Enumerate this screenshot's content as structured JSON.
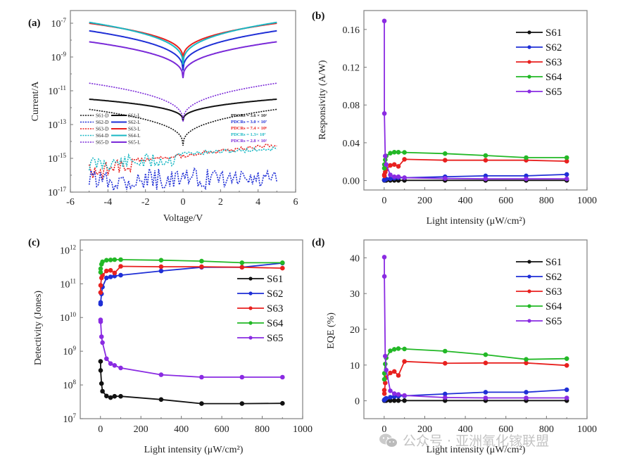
{
  "figure": {
    "watermark_text": "公众号 · 亚洲氧化镓联盟",
    "watermark_icon": "wechat-icon"
  },
  "colors": {
    "S61": "#111111",
    "S62": "#1f2fd6",
    "S63": "#e8211f",
    "S64": "#22b826",
    "S65": "#8a2be2",
    "S64_iv": "#19b8c4",
    "S65_iv": "#7a2ad8",
    "axis": "#888888"
  },
  "chart_data": [
    {
      "id": "a",
      "panel_label": "(a)",
      "type": "line",
      "title": "",
      "xlabel": "Voltage/V",
      "ylabel": "Current/A",
      "xlim": [
        -6,
        6
      ],
      "ylim_log10": [
        -17,
        -6.25
      ],
      "yscale": "log",
      "xticks": [
        -6,
        -4,
        -2,
        0,
        2,
        4,
        6
      ],
      "xtick_labels": [
        "-6",
        "-4",
        "-2",
        "0",
        "2",
        "4",
        "6"
      ],
      "yticks_exp": [
        -7,
        -9,
        -11,
        -13,
        -15,
        -17
      ],
      "ytick_labels": [
        "-7",
        "-9",
        "-11",
        "-13",
        "-15",
        "-17"
      ],
      "legend": {
        "placement": "lower-left",
        "entries": [
          {
            "dark": "S61-D",
            "light": "S61-L"
          },
          {
            "dark": "S62-D",
            "light": "S62-L"
          },
          {
            "dark": "S63-D",
            "light": "S63-L"
          },
          {
            "dark": "S64-D",
            "light": "S64-L"
          },
          {
            "dark": "S65-D",
            "light": "S65-L"
          }
        ]
      },
      "annotations": [
        {
          "text": "PDCRs = 3.6 × 10²",
          "series": "S61"
        },
        {
          "text": "PDCRs = 3.0 × 10⁷",
          "series": "S62"
        },
        {
          "text": "PDCRs = 7.4 × 10⁶",
          "series": "S63"
        },
        {
          "text": "PDCRs = 1.3× 10⁷",
          "series": "S64"
        },
        {
          "text": "PDCRs = 2.8 × 10²",
          "series": "S65"
        }
      ],
      "series": [
        {
          "name": "S61-L",
          "style": "solid",
          "color_key": "S61",
          "end_log": -11.5,
          "min_log": -12.8
        },
        {
          "name": "S62-L",
          "style": "solid",
          "color_key": "S62",
          "end_log": -7.45,
          "min_log": -9.85
        },
        {
          "name": "S63-L",
          "style": "solid",
          "color_key": "S63",
          "end_log": -7.0,
          "min_log": -9.2
        },
        {
          "name": "S64-L",
          "style": "solid",
          "color_key": "S64_iv",
          "end_log": -6.95,
          "min_log": -9.5
        },
        {
          "name": "S65-L",
          "style": "solid",
          "color_key": "S65_iv",
          "end_log": -8.1,
          "min_log": -10.3
        },
        {
          "name": "S61-D",
          "style": "dotted",
          "color_key": "S61",
          "end_log": -12.1,
          "min_log": -14.3
        },
        {
          "name": "S65-D",
          "style": "dotted",
          "color_key": "S65_iv",
          "end_log": -10.55,
          "min_log": -12.9
        },
        {
          "name": "S63-D",
          "style": "dotted-noisy",
          "color_key": "S63",
          "left_log": -15.3,
          "right_log": -14.1
        },
        {
          "name": "S64-D",
          "style": "dotted-noisy",
          "color_key": "S64_iv",
          "left_log": -14.9,
          "right_log": -14.3
        },
        {
          "name": "S62-D",
          "style": "dotted-noisy",
          "color_key": "S62",
          "left_log": -15.6,
          "right_log": -15.6
        }
      ]
    },
    {
      "id": "b",
      "panel_label": "(b)",
      "type": "line",
      "title": "",
      "xlabel": "Light intensity (μW/cm²)",
      "ylabel": "Responsivity (A/W)",
      "xlim": [
        -100,
        1000
      ],
      "ylim": [
        -0.01,
        0.18
      ],
      "xticks": [
        0,
        200,
        400,
        600,
        800,
        1000
      ],
      "xtick_labels": [
        "0",
        "200",
        "400",
        "600",
        "800",
        "1000"
      ],
      "yticks": [
        0.0,
        0.04,
        0.08,
        0.12,
        0.16
      ],
      "ytick_labels": [
        "0.00",
        "0.04",
        "0.08",
        "0.12",
        "0.16"
      ],
      "legend": {
        "placement": "top-right",
        "entries": [
          "S61",
          "S62",
          "S63",
          "S64",
          "S65"
        ]
      },
      "x": [
        0.5,
        1,
        5,
        10,
        30,
        50,
        70,
        100,
        300,
        500,
        700,
        900
      ],
      "series": [
        {
          "name": "S61",
          "values": [
            0.0002,
            0.0002,
            0.0002,
            0.0002,
            0.0002,
            0.0002,
            0.0002,
            0.0002,
            0.0002,
            0.0002,
            0.0002,
            0.0002
          ]
        },
        {
          "name": "S62",
          "values": [
            0.0005,
            0.0008,
            0.0012,
            0.0016,
            0.002,
            0.0025,
            0.003,
            0.003,
            0.004,
            0.005,
            0.005,
            0.0065
          ]
        },
        {
          "name": "S63",
          "values": [
            0.006,
            0.005,
            0.009,
            0.012,
            0.016,
            0.017,
            0.015,
            0.0225,
            0.0215,
            0.0215,
            0.0215,
            0.0205
          ]
        },
        {
          "name": "S64",
          "values": [
            0.013,
            0.017,
            0.022,
            0.026,
            0.029,
            0.03,
            0.03,
            0.0298,
            0.0285,
            0.0265,
            0.0243,
            0.0243
          ]
        },
        {
          "name": "S65",
          "values": [
            0.169,
            0.071,
            0.026,
            0.017,
            0.006,
            0.004,
            0.004,
            0.003,
            0.0022,
            0.0018,
            0.0018,
            0.0018
          ]
        }
      ]
    },
    {
      "id": "c",
      "panel_label": "(c)",
      "type": "line",
      "title": "",
      "xlabel": "Light intensity (μW/cm²)",
      "ylabel": "Detectivity (Jones)",
      "xlim": [
        -100,
        1000
      ],
      "ylim_log10": [
        7,
        12.3
      ],
      "yscale": "log",
      "xticks": [
        0,
        200,
        400,
        600,
        800,
        1000
      ],
      "xtick_labels": [
        "0",
        "200",
        "400",
        "600",
        "800",
        "1000"
      ],
      "yticks_exp": [
        7,
        8,
        9,
        10,
        11,
        12
      ],
      "ytick_labels": [
        "7",
        "8",
        "9",
        "10",
        "11",
        "12"
      ],
      "legend": {
        "placement": "right",
        "entries": [
          "S61",
          "S62",
          "S63",
          "S64",
          "S65"
        ]
      },
      "x": [
        0.5,
        1,
        5,
        10,
        30,
        50,
        70,
        100,
        300,
        500,
        700,
        900
      ],
      "series": [
        {
          "name": "S61",
          "values": [
            500000000.0,
            270000000.0,
            110000000.0,
            65000000.0,
            47000000.0,
            42000000.0,
            46000000.0,
            46000000.0,
            37000000.0,
            28000000.0,
            28000000.0,
            28500000.0
          ]
        },
        {
          "name": "S62",
          "values": [
            25000000000.0,
            28000000000.0,
            50000000000.0,
            80000000000.0,
            150000000000.0,
            160000000000.0,
            170000000000.0,
            180000000000.0,
            240000000000.0,
            310000000000.0,
            310000000000.0,
            410000000000.0
          ]
        },
        {
          "name": "S63",
          "values": [
            55000000000.0,
            90000000000.0,
            150000000000.0,
            180000000000.0,
            240000000000.0,
            250000000000.0,
            210000000000.0,
            330000000000.0,
            320000000000.0,
            320000000000.0,
            310000000000.0,
            290000000000.0
          ]
        },
        {
          "name": "S64",
          "values": [
            220000000000.0,
            280000000000.0,
            380000000000.0,
            450000000000.0,
            500000000000.0,
            510000000000.0,
            520000000000.0,
            520000000000.0,
            500000000000.0,
            470000000000.0,
            420000000000.0,
            420000000000.0
          ]
        },
        {
          "name": "S65",
          "values": [
            8500000000.0,
            7500000000.0,
            2700000000.0,
            1800000000.0,
            600000000.0,
            430000000.0,
            380000000.0,
            320000000.0,
            200000000.0,
            170000000.0,
            170000000.0,
            170000000.0
          ]
        }
      ]
    },
    {
      "id": "d",
      "panel_label": "(d)",
      "type": "line",
      "title": "",
      "xlabel": "Light intensity (μW/cm²)",
      "ylabel": "EQE (%)",
      "xlim": [
        -100,
        1000
      ],
      "ylim": [
        -5,
        45
      ],
      "xticks": [
        0,
        200,
        400,
        600,
        800,
        1000
      ],
      "xtick_labels": [
        "0",
        "200",
        "400",
        "600",
        "800",
        "1000"
      ],
      "yticks": [
        0,
        10,
        20,
        30,
        40
      ],
      "ytick_labels": [
        "0",
        "10",
        "20",
        "30",
        "40"
      ],
      "legend": {
        "placement": "top-right",
        "entries": [
          "S61",
          "S62",
          "S63",
          "S64",
          "S65"
        ]
      },
      "x": [
        0.5,
        1,
        5,
        10,
        30,
        50,
        70,
        100,
        300,
        500,
        700,
        900
      ],
      "series": [
        {
          "name": "S61",
          "values": [
            0.05,
            0.05,
            0.05,
            0.05,
            0.05,
            0.05,
            0.05,
            0.05,
            0.05,
            0.05,
            0.05,
            0.05
          ]
        },
        {
          "name": "S62",
          "values": [
            0.2,
            0.3,
            0.5,
            0.7,
            1.0,
            1.2,
            1.3,
            1.4,
            1.9,
            2.4,
            2.4,
            3.1
          ]
        },
        {
          "name": "S63",
          "values": [
            3.0,
            2.0,
            5.0,
            6.5,
            7.8,
            8.2,
            7.1,
            11.0,
            10.5,
            10.6,
            10.6,
            9.9
          ]
        },
        {
          "name": "S64",
          "values": [
            6.0,
            7.7,
            10.3,
            12.0,
            14.0,
            14.4,
            14.6,
            14.5,
            13.9,
            12.9,
            11.6,
            11.8
          ]
        },
        {
          "name": "S65",
          "values": [
            40.2,
            34.8,
            12.5,
            8.6,
            2.8,
            2.0,
            1.8,
            1.5,
            0.9,
            0.8,
            0.8,
            0.8
          ]
        }
      ]
    }
  ]
}
